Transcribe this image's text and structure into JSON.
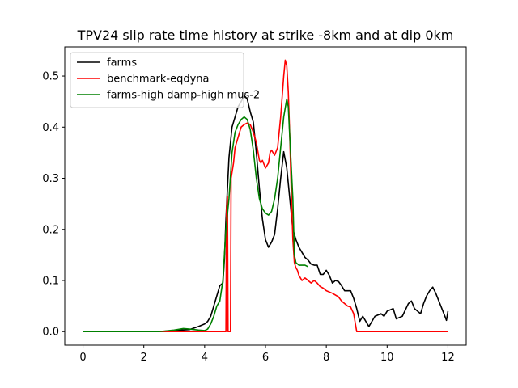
{
  "chart_data": {
    "type": "line",
    "title": "TPV24 slip rate time history at strike -8km and at dip 0km",
    "xlabel": "",
    "ylabel": "",
    "xlim": [
      -0.6,
      12.6
    ],
    "ylim": [
      -0.0265,
      0.557
    ],
    "xticks": [
      0,
      2,
      4,
      6,
      8,
      10,
      12
    ],
    "yticks": [
      0.0,
      0.1,
      0.2,
      0.3,
      0.4,
      0.5
    ],
    "xtick_labels": [
      "0",
      "2",
      "4",
      "6",
      "8",
      "10",
      "12"
    ],
    "ytick_labels": [
      "0.0",
      "0.1",
      "0.2",
      "0.3",
      "0.4",
      "0.5"
    ],
    "grid": false,
    "legend_position": "top-left",
    "series": [
      {
        "name": "farms",
        "color": "#000000",
        "points": [
          [
            0,
            0
          ],
          [
            2.5,
            0
          ],
          [
            3.0,
            0.002
          ],
          [
            3.5,
            0.004
          ],
          [
            3.8,
            0.01
          ],
          [
            4.0,
            0.015
          ],
          [
            4.1,
            0.02
          ],
          [
            4.2,
            0.03
          ],
          [
            4.3,
            0.05
          ],
          [
            4.4,
            0.07
          ],
          [
            4.5,
            0.09
          ],
          [
            4.6,
            0.095
          ],
          [
            4.65,
            0.14
          ],
          [
            4.7,
            0.22
          ],
          [
            4.8,
            0.34
          ],
          [
            4.9,
            0.4
          ],
          [
            5.0,
            0.42
          ],
          [
            5.1,
            0.44
          ],
          [
            5.2,
            0.45
          ],
          [
            5.3,
            0.462
          ],
          [
            5.4,
            0.455
          ],
          [
            5.5,
            0.43
          ],
          [
            5.6,
            0.41
          ],
          [
            5.7,
            0.35
          ],
          [
            5.8,
            0.28
          ],
          [
            5.9,
            0.22
          ],
          [
            6.0,
            0.18
          ],
          [
            6.1,
            0.165
          ],
          [
            6.2,
            0.175
          ],
          [
            6.3,
            0.19
          ],
          [
            6.4,
            0.24
          ],
          [
            6.5,
            0.3
          ],
          [
            6.6,
            0.352
          ],
          [
            6.7,
            0.32
          ],
          [
            6.8,
            0.26
          ],
          [
            6.9,
            0.2
          ],
          [
            7.0,
            0.18
          ],
          [
            7.1,
            0.165
          ],
          [
            7.2,
            0.155
          ],
          [
            7.3,
            0.145
          ],
          [
            7.4,
            0.14
          ],
          [
            7.5,
            0.132
          ],
          [
            7.6,
            0.13
          ],
          [
            7.7,
            0.13
          ],
          [
            7.8,
            0.112
          ],
          [
            7.9,
            0.112
          ],
          [
            8.0,
            0.12
          ],
          [
            8.1,
            0.11
          ],
          [
            8.2,
            0.095
          ],
          [
            8.3,
            0.1
          ],
          [
            8.4,
            0.098
          ],
          [
            8.5,
            0.09
          ],
          [
            8.6,
            0.08
          ],
          [
            8.8,
            0.08
          ],
          [
            8.9,
            0.065
          ],
          [
            9.0,
            0.045
          ],
          [
            9.1,
            0.02
          ],
          [
            9.2,
            0.03
          ],
          [
            9.4,
            0.01
          ],
          [
            9.6,
            0.03
          ],
          [
            9.8,
            0.035
          ],
          [
            9.9,
            0.03
          ],
          [
            10.0,
            0.04
          ],
          [
            10.2,
            0.045
          ],
          [
            10.3,
            0.025
          ],
          [
            10.5,
            0.03
          ],
          [
            10.7,
            0.055
          ],
          [
            10.8,
            0.06
          ],
          [
            10.9,
            0.045
          ],
          [
            11.0,
            0.04
          ],
          [
            11.1,
            0.035
          ],
          [
            11.2,
            0.055
          ],
          [
            11.3,
            0.07
          ],
          [
            11.4,
            0.08
          ],
          [
            11.5,
            0.087
          ],
          [
            11.6,
            0.075
          ],
          [
            11.8,
            0.045
          ],
          [
            11.9,
            0.03
          ],
          [
            11.95,
            0.022
          ],
          [
            12.0,
            0.04
          ]
        ]
      },
      {
        "name": "benchmark-eqdyna",
        "color": "#ff0000",
        "points": [
          [
            0,
            0
          ],
          [
            4.7,
            0
          ],
          [
            4.72,
            0.24
          ],
          [
            4.75,
            0.265
          ],
          [
            4.77,
            0
          ],
          [
            4.85,
            0
          ],
          [
            4.87,
            0.3
          ],
          [
            4.95,
            0.33
          ],
          [
            5.0,
            0.36
          ],
          [
            5.1,
            0.38
          ],
          [
            5.2,
            0.4
          ],
          [
            5.3,
            0.405
          ],
          [
            5.4,
            0.408
          ],
          [
            5.5,
            0.405
          ],
          [
            5.6,
            0.39
          ],
          [
            5.7,
            0.37
          ],
          [
            5.8,
            0.335
          ],
          [
            5.85,
            0.33
          ],
          [
            5.9,
            0.335
          ],
          [
            6.0,
            0.32
          ],
          [
            6.1,
            0.33
          ],
          [
            6.15,
            0.35
          ],
          [
            6.2,
            0.355
          ],
          [
            6.3,
            0.345
          ],
          [
            6.4,
            0.36
          ],
          [
            6.5,
            0.42
          ],
          [
            6.6,
            0.5
          ],
          [
            6.65,
            0.531
          ],
          [
            6.7,
            0.52
          ],
          [
            6.75,
            0.47
          ],
          [
            6.8,
            0.38
          ],
          [
            6.85,
            0.27
          ],
          [
            6.9,
            0.18
          ],
          [
            6.95,
            0.135
          ],
          [
            7.0,
            0.125
          ],
          [
            7.05,
            0.12
          ],
          [
            7.1,
            0.11
          ],
          [
            7.2,
            0.1
          ],
          [
            7.3,
            0.105
          ],
          [
            7.4,
            0.1
          ],
          [
            7.5,
            0.095
          ],
          [
            7.6,
            0.1
          ],
          [
            7.7,
            0.095
          ],
          [
            7.8,
            0.088
          ],
          [
            7.9,
            0.085
          ],
          [
            8.0,
            0.08
          ],
          [
            8.2,
            0.075
          ],
          [
            8.4,
            0.068
          ],
          [
            8.5,
            0.06
          ],
          [
            8.6,
            0.055
          ],
          [
            8.7,
            0.05
          ],
          [
            8.8,
            0.048
          ],
          [
            8.9,
            0.035
          ],
          [
            9.0,
            0
          ],
          [
            12.0,
            0
          ]
        ]
      },
      {
        "name": "farms-high damp-high mus-2",
        "color": "#008000",
        "points": [
          [
            0,
            0
          ],
          [
            2.5,
            0
          ],
          [
            3.0,
            0.003
          ],
          [
            3.3,
            0.006
          ],
          [
            3.5,
            0.005
          ],
          [
            3.8,
            0.003
          ],
          [
            4.0,
            0.002
          ],
          [
            4.1,
            0.005
          ],
          [
            4.2,
            0.015
          ],
          [
            4.3,
            0.03
          ],
          [
            4.4,
            0.05
          ],
          [
            4.5,
            0.06
          ],
          [
            4.6,
            0.1
          ],
          [
            4.7,
            0.2
          ],
          [
            4.8,
            0.26
          ],
          [
            4.9,
            0.35
          ],
          [
            5.0,
            0.39
          ],
          [
            5.1,
            0.405
          ],
          [
            5.2,
            0.415
          ],
          [
            5.3,
            0.42
          ],
          [
            5.4,
            0.415
          ],
          [
            5.5,
            0.395
          ],
          [
            5.6,
            0.355
          ],
          [
            5.7,
            0.3
          ],
          [
            5.8,
            0.26
          ],
          [
            5.9,
            0.24
          ],
          [
            6.0,
            0.232
          ],
          [
            6.1,
            0.228
          ],
          [
            6.2,
            0.235
          ],
          [
            6.3,
            0.26
          ],
          [
            6.4,
            0.3
          ],
          [
            6.5,
            0.36
          ],
          [
            6.6,
            0.42
          ],
          [
            6.7,
            0.455
          ],
          [
            6.75,
            0.44
          ],
          [
            6.8,
            0.38
          ],
          [
            6.9,
            0.26
          ],
          [
            6.95,
            0.15
          ],
          [
            7.0,
            0.135
          ],
          [
            7.1,
            0.13
          ],
          [
            7.3,
            0.13
          ],
          [
            7.4,
            0.127
          ]
        ]
      }
    ]
  }
}
